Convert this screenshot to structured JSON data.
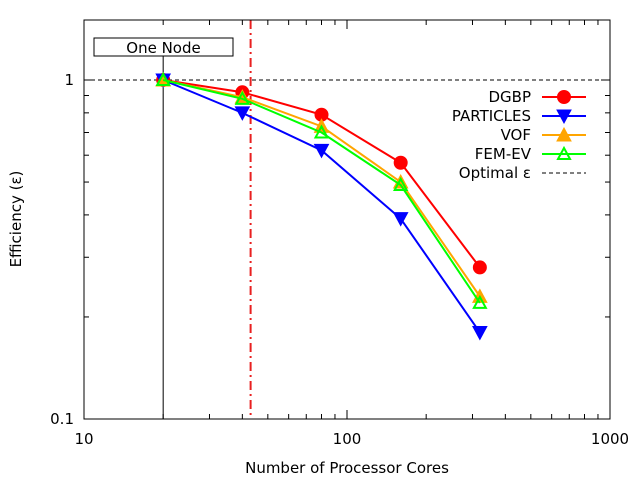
{
  "chart_data": {
    "type": "line",
    "xscale": "log",
    "yscale": "log",
    "xlim": [
      10,
      1000
    ],
    "ylim": [
      0.1,
      1.5
    ],
    "xlabel": "Number of Processor Cores",
    "ylabel": "Efficiency (ε)",
    "xticks": [
      {
        "value": 10,
        "label": "10"
      },
      {
        "value": 100,
        "label": "100"
      },
      {
        "value": 1000,
        "label": "1000"
      }
    ],
    "yticks": [
      {
        "value": 0.1,
        "label": "0.1"
      },
      {
        "value": 1,
        "label": "1"
      }
    ],
    "annotation": {
      "text": "One Node",
      "x": 20
    },
    "vline_dashdot": {
      "x": 43,
      "color": "#e82020"
    },
    "legend_position": "top-right",
    "series": [
      {
        "name": "DGBP",
        "color": "#ff0000",
        "marker": "circle-filled",
        "x": [
          20,
          40,
          80,
          160,
          320
        ],
        "values": [
          1.0,
          0.92,
          0.79,
          0.57,
          0.28
        ]
      },
      {
        "name": "PARTICLES",
        "color": "#0000ff",
        "marker": "triangle-down-filled",
        "x": [
          20,
          40,
          80,
          160,
          320
        ],
        "values": [
          1.0,
          0.8,
          0.62,
          0.39,
          0.18
        ]
      },
      {
        "name": "VOF",
        "color": "#ffa500",
        "marker": "triangle-up-filled",
        "x": [
          20,
          40,
          80,
          160,
          320
        ],
        "values": [
          1.0,
          0.89,
          0.73,
          0.5,
          0.23
        ]
      },
      {
        "name": "FEM-EV",
        "color": "#00ff00",
        "marker": "triangle-up-open",
        "x": [
          20,
          40,
          80,
          160,
          320
        ],
        "values": [
          1.0,
          0.88,
          0.7,
          0.49,
          0.22
        ]
      }
    ],
    "optimal": {
      "name": "Optimal ε",
      "value": 1.0,
      "color": "#000000"
    }
  }
}
